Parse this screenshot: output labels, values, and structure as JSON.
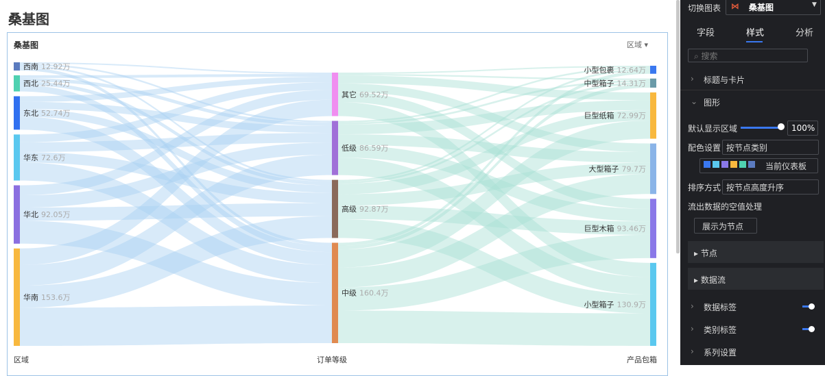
{
  "page": {
    "title": "桑基图",
    "card_title": "桑基图",
    "card_filter": "区域"
  },
  "chart_data": {
    "type": "sankey",
    "columns": [
      {
        "label": "区域",
        "nodes": [
          {
            "name": "西南",
            "value": 12.92,
            "value_label": "12.92万",
            "color": "#5b7bbf"
          },
          {
            "name": "西北",
            "value": 25.44,
            "value_label": "25.44万",
            "color": "#4fd1b0"
          },
          {
            "name": "东北",
            "value": 52.74,
            "value_label": "52.74万",
            "color": "#3070f0"
          },
          {
            "name": "华东",
            "value": 72.6,
            "value_label": "72.6万",
            "color": "#5ac8ef"
          },
          {
            "name": "华北",
            "value": 92.05,
            "value_label": "92.05万",
            "color": "#8b6fe0"
          },
          {
            "name": "华南",
            "value": 153.6,
            "value_label": "153.6万",
            "color": "#f8b83e"
          }
        ]
      },
      {
        "label": "订单等级",
        "nodes": [
          {
            "name": "其它",
            "value": 69.52,
            "value_label": "69.52万",
            "color": "#f08ef0"
          },
          {
            "name": "低级",
            "value": 86.59,
            "value_label": "86.59万",
            "color": "#a070d8"
          },
          {
            "name": "高级",
            "value": 92.87,
            "value_label": "92.87万",
            "color": "#8a6a5a"
          },
          {
            "name": "中级",
            "value": 160.4,
            "value_label": "160.4万",
            "color": "#e08a50"
          }
        ]
      },
      {
        "label": "产品包箱",
        "nodes": [
          {
            "name": "小型包裹",
            "value": 12.64,
            "value_label": "12.64万",
            "color": "#3a78f0"
          },
          {
            "name": "中型箱子",
            "value": 14.31,
            "value_label": "14.31万",
            "color": "#6a9aa8"
          },
          {
            "name": "巨型纸箱",
            "value": 72.99,
            "value_label": "72.99万",
            "color": "#f8b83e"
          },
          {
            "name": "大型箱子",
            "value": 79.7,
            "value_label": "79.7万",
            "color": "#8ab4e8"
          },
          {
            "name": "巨型木箱",
            "value": 93.46,
            "value_label": "93.46万",
            "color": "#8a78e8"
          },
          {
            "name": "小型箱子",
            "value": 130.9,
            "value_label": "130.9万",
            "color": "#5ac8ef"
          }
        ]
      }
    ]
  },
  "panel": {
    "switch_label": "切换图表",
    "chart_name": "桑基图",
    "tabs": [
      "字段",
      "样式",
      "分析"
    ],
    "search": "搜索",
    "sections": [
      "标题与卡片",
      "图形"
    ],
    "default_area": "默认显示区域",
    "percent": "100%",
    "color_label": "配色设置",
    "color_value": "按节点类别",
    "palette": "当前仪表板",
    "sort_label": "排序方式",
    "sort_value": "按节点高度升序",
    "null_label": "流出数据的空值处理",
    "null_value": "展示为节点",
    "sub": [
      "节点",
      "数据流"
    ],
    "more": [
      "数据标签",
      "类别标签",
      "系列设置"
    ]
  }
}
